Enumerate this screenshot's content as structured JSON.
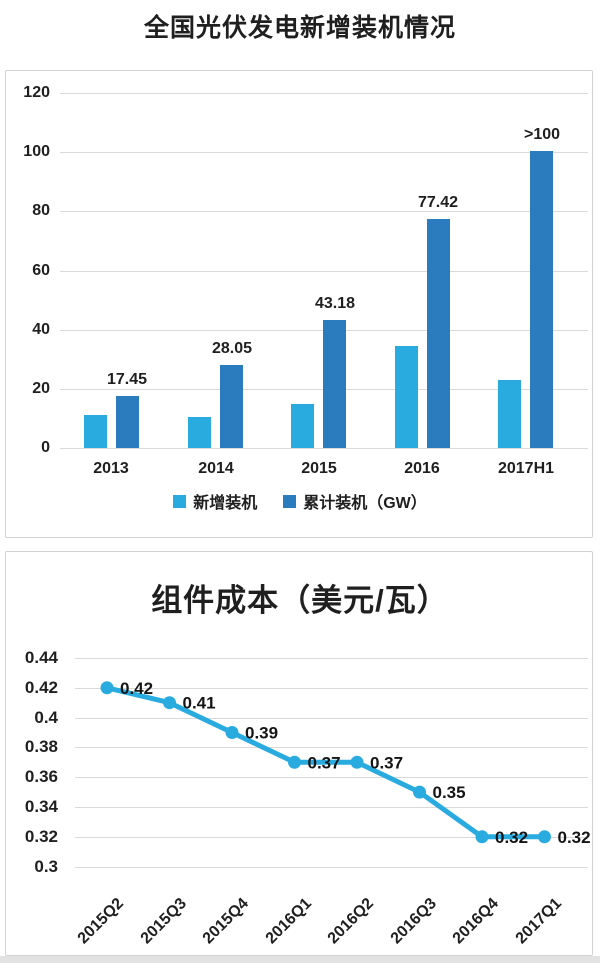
{
  "page": {
    "title": "全国光伏发电新增装机情况"
  },
  "colors": {
    "new_installed_blue": "#29abdf",
    "cumulative_blue": "#2b7bbf",
    "line_blue": "#29abe0",
    "gridline": "#d9d9d9",
    "text": "#1f1f1f"
  },
  "chart_data": [
    {
      "type": "bar",
      "title": "全国光伏发电新增装机情况",
      "categories": [
        "2013",
        "2014",
        "2015",
        "2016",
        "2017H1"
      ],
      "series": [
        {
          "name": "新增装机",
          "color": "#29abdf",
          "values": [
            11,
            10.6,
            15,
            34.5,
            23
          ]
        },
        {
          "name": "累计装机（GW）",
          "color": "#2b7bbf",
          "values": [
            17.45,
            28.05,
            43.18,
            77.42,
            100.5
          ],
          "labels": [
            "17.45",
            "28.05",
            "43.18",
            "77.42",
            ">100"
          ]
        }
      ],
      "ylim": [
        0,
        120
      ],
      "yticks": [
        "0",
        "20",
        "40",
        "60",
        "80",
        "100",
        "120"
      ],
      "grid": true,
      "legend_position": "bottom"
    },
    {
      "type": "line",
      "title": "组件成本（美元/瓦）",
      "x": [
        "2015Q2",
        "2015Q3",
        "2015Q4",
        "2016Q1",
        "2016Q2",
        "2016Q3",
        "2016Q4",
        "2017Q1"
      ],
      "values": [
        0.42,
        0.41,
        0.39,
        0.37,
        0.37,
        0.35,
        0.32,
        0.32
      ],
      "labels": [
        "0.42",
        "0.41",
        "0.39",
        "0.37",
        "0.37",
        "0.35",
        "0.32",
        "0.32"
      ],
      "ylim": [
        0.3,
        0.44
      ],
      "yticks": [
        "0.3",
        "0.32",
        "0.34",
        "0.36",
        "0.38",
        "0.4",
        "0.42",
        "0.44"
      ],
      "color": "#29abe0",
      "grid": true,
      "legend_position": "none"
    }
  ]
}
